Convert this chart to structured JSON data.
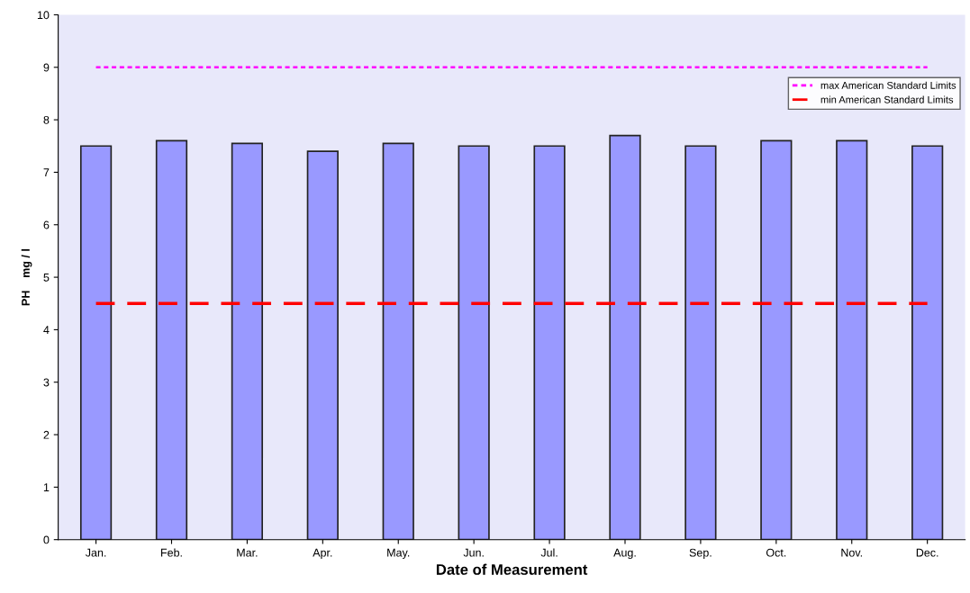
{
  "chart_data": {
    "type": "bar",
    "xlabel": "Date of Measurement",
    "ylabel": "PH    mg / l",
    "categories": [
      "Jan.",
      "Feb.",
      "Mar.",
      "Apr.",
      "May.",
      "Jun.",
      "Jul.",
      "Aug.",
      "Sep.",
      "Oct.",
      "Nov.",
      "Dec."
    ],
    "series": [
      {
        "color": "#9999ff",
        "values": [
          7.5,
          7.6,
          7.55,
          7.4,
          7.55,
          7.5,
          7.5,
          7.7,
          7.5,
          7.6,
          7.6,
          7.5
        ]
      },
      {
        "type": "line",
        "name": "max American Standard Limits",
        "color": "#ff00ff",
        "line_style": "dotted",
        "values": [
          9,
          9,
          9,
          9,
          9,
          9,
          9,
          9,
          9,
          9,
          9,
          9
        ]
      },
      {
        "type": "line",
        "name": "min American Standard Limits",
        "color": "#ff0000",
        "line_style": "dashed",
        "values": [
          4.5,
          4.5,
          4.5,
          4.5,
          4.5,
          4.5,
          4.5,
          4.5,
          4.5,
          4.5,
          4.5,
          4.5
        ]
      }
    ],
    "ylim": [
      0,
      10
    ],
    "yticks": [
      0,
      1,
      2,
      3,
      4,
      5,
      6,
      7,
      8,
      9,
      10
    ],
    "grid": false,
    "legend": "top right",
    "marker": "none"
  }
}
